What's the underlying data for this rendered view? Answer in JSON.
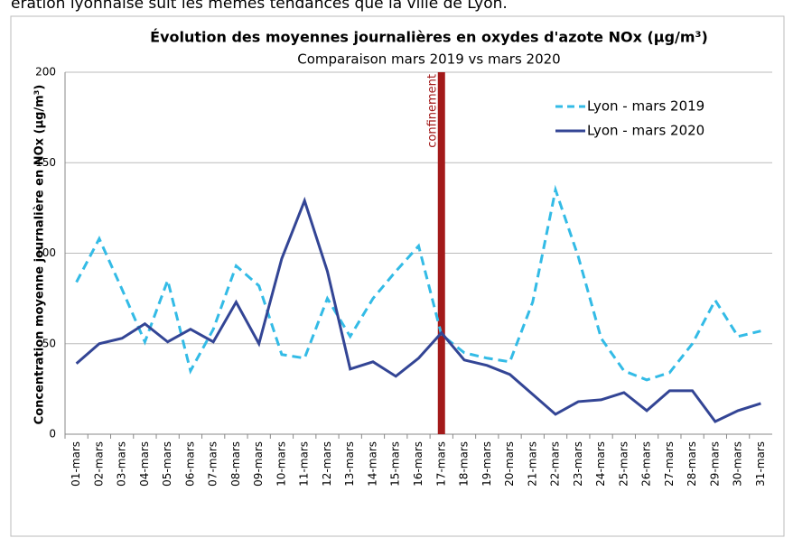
{
  "caption": "ération lyonnaise suit les mêmes tendances que la ville de Lyon.",
  "chart_data": {
    "type": "line",
    "title": "Évolution des moyennes journalières en oxydes d'azote NOx (µg/m³)",
    "subtitle": "Comparaison mars 2019 vs mars 2020",
    "y_label": "Concentration moyenne journalière en NOx (µg/m³)",
    "categories": [
      "01-mars",
      "02-mars",
      "03-mars",
      "04-mars",
      "05-mars",
      "06-mars",
      "07-mars",
      "08-mars",
      "09-mars",
      "10-mars",
      "11-mars",
      "12-mars",
      "13-mars",
      "14-mars",
      "15-mars",
      "16-mars",
      "17-mars",
      "18-mars",
      "19-mars",
      "20-mars",
      "21-mars",
      "22-mars",
      "23-mars",
      "24-mars",
      "25-mars",
      "26-mars",
      "27-mars",
      "28-mars",
      "29-mars",
      "30-mars",
      "31-mars"
    ],
    "series": [
      {
        "name": "Lyon - mars 2019",
        "color": "#33bbe6",
        "dashed": true,
        "values": [
          84,
          108,
          80,
          51,
          85,
          35,
          58,
          93,
          82,
          44,
          42,
          75,
          54,
          75,
          90,
          104,
          55,
          45,
          42,
          40,
          73,
          135,
          98,
          53,
          35,
          30,
          34,
          50,
          74,
          54,
          57
        ]
      },
      {
        "name": "Lyon - mars 2020",
        "color": "#334595",
        "dashed": false,
        "values": [
          39,
          50,
          53,
          61,
          51,
          58,
          51,
          73,
          50,
          97,
          129,
          90,
          36,
          40,
          32,
          42,
          56,
          41,
          38,
          33,
          22,
          11,
          18,
          19,
          23,
          13,
          24,
          24,
          7,
          13,
          17
        ]
      }
    ],
    "annotations": [
      {
        "text": "confinement",
        "x": "17-mars",
        "color": "#a31a1a"
      }
    ],
    "ylim": [
      0,
      200
    ],
    "yticks": [
      0,
      50,
      100,
      150,
      200
    ],
    "grid": true,
    "legend": "upper right"
  }
}
